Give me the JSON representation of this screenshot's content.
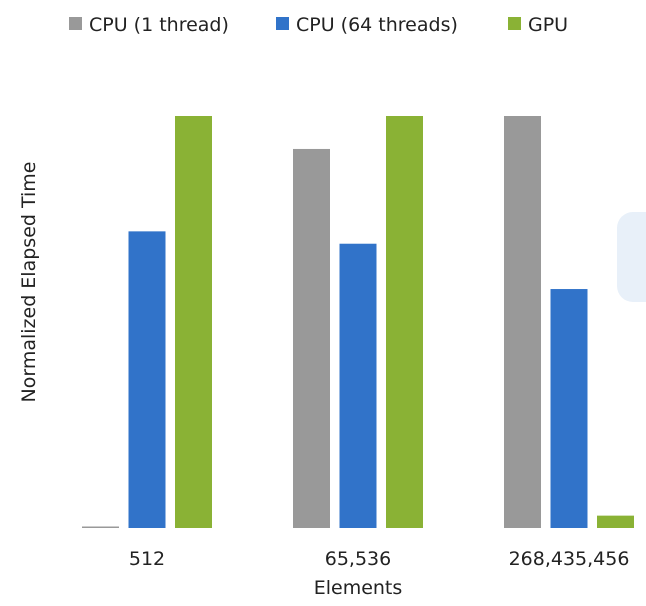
{
  "chart_data": {
    "type": "bar",
    "title": "",
    "xlabel": "Elements",
    "ylabel": "Normalized Elapsed Time",
    "categories": [
      "512",
      "65,536",
      "268,435,456"
    ],
    "series": [
      {
        "name": "CPU (1 thread)",
        "color": "#999999",
        "values": [
          0.003,
          0.92,
          1.0
        ]
      },
      {
        "name": "CPU (64 threads)",
        "color": "#3173c9",
        "values": [
          0.72,
          0.69,
          0.58
        ]
      },
      {
        "name": "GPU",
        "color": "#8ab235",
        "values": [
          1.0,
          1.0,
          0.03
        ]
      }
    ],
    "ylim": [
      0,
      1
    ],
    "grid": false,
    "legend_position": "top"
  }
}
